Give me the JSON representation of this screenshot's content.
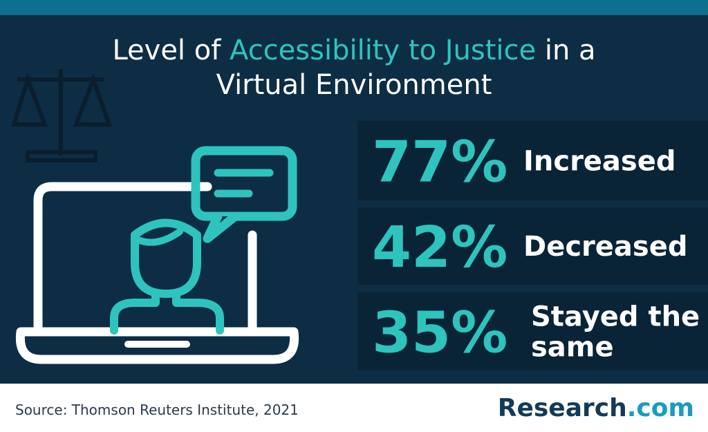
{
  "title": {
    "before": "Level of ",
    "highlight": "Accessibility to Justice",
    "after": " in a",
    "line2": "Virtual Environment"
  },
  "stats": [
    {
      "percent": "77%",
      "label": [
        "Increased"
      ]
    },
    {
      "percent": "42%",
      "label": [
        "Decreased"
      ]
    },
    {
      "percent": "35%",
      "label": [
        "Stayed the",
        "same"
      ]
    }
  ],
  "footer": {
    "source": "Source: Thomson Reuters Institute, 2021",
    "logo": "Research",
    "logo_suffix": ".com"
  }
}
